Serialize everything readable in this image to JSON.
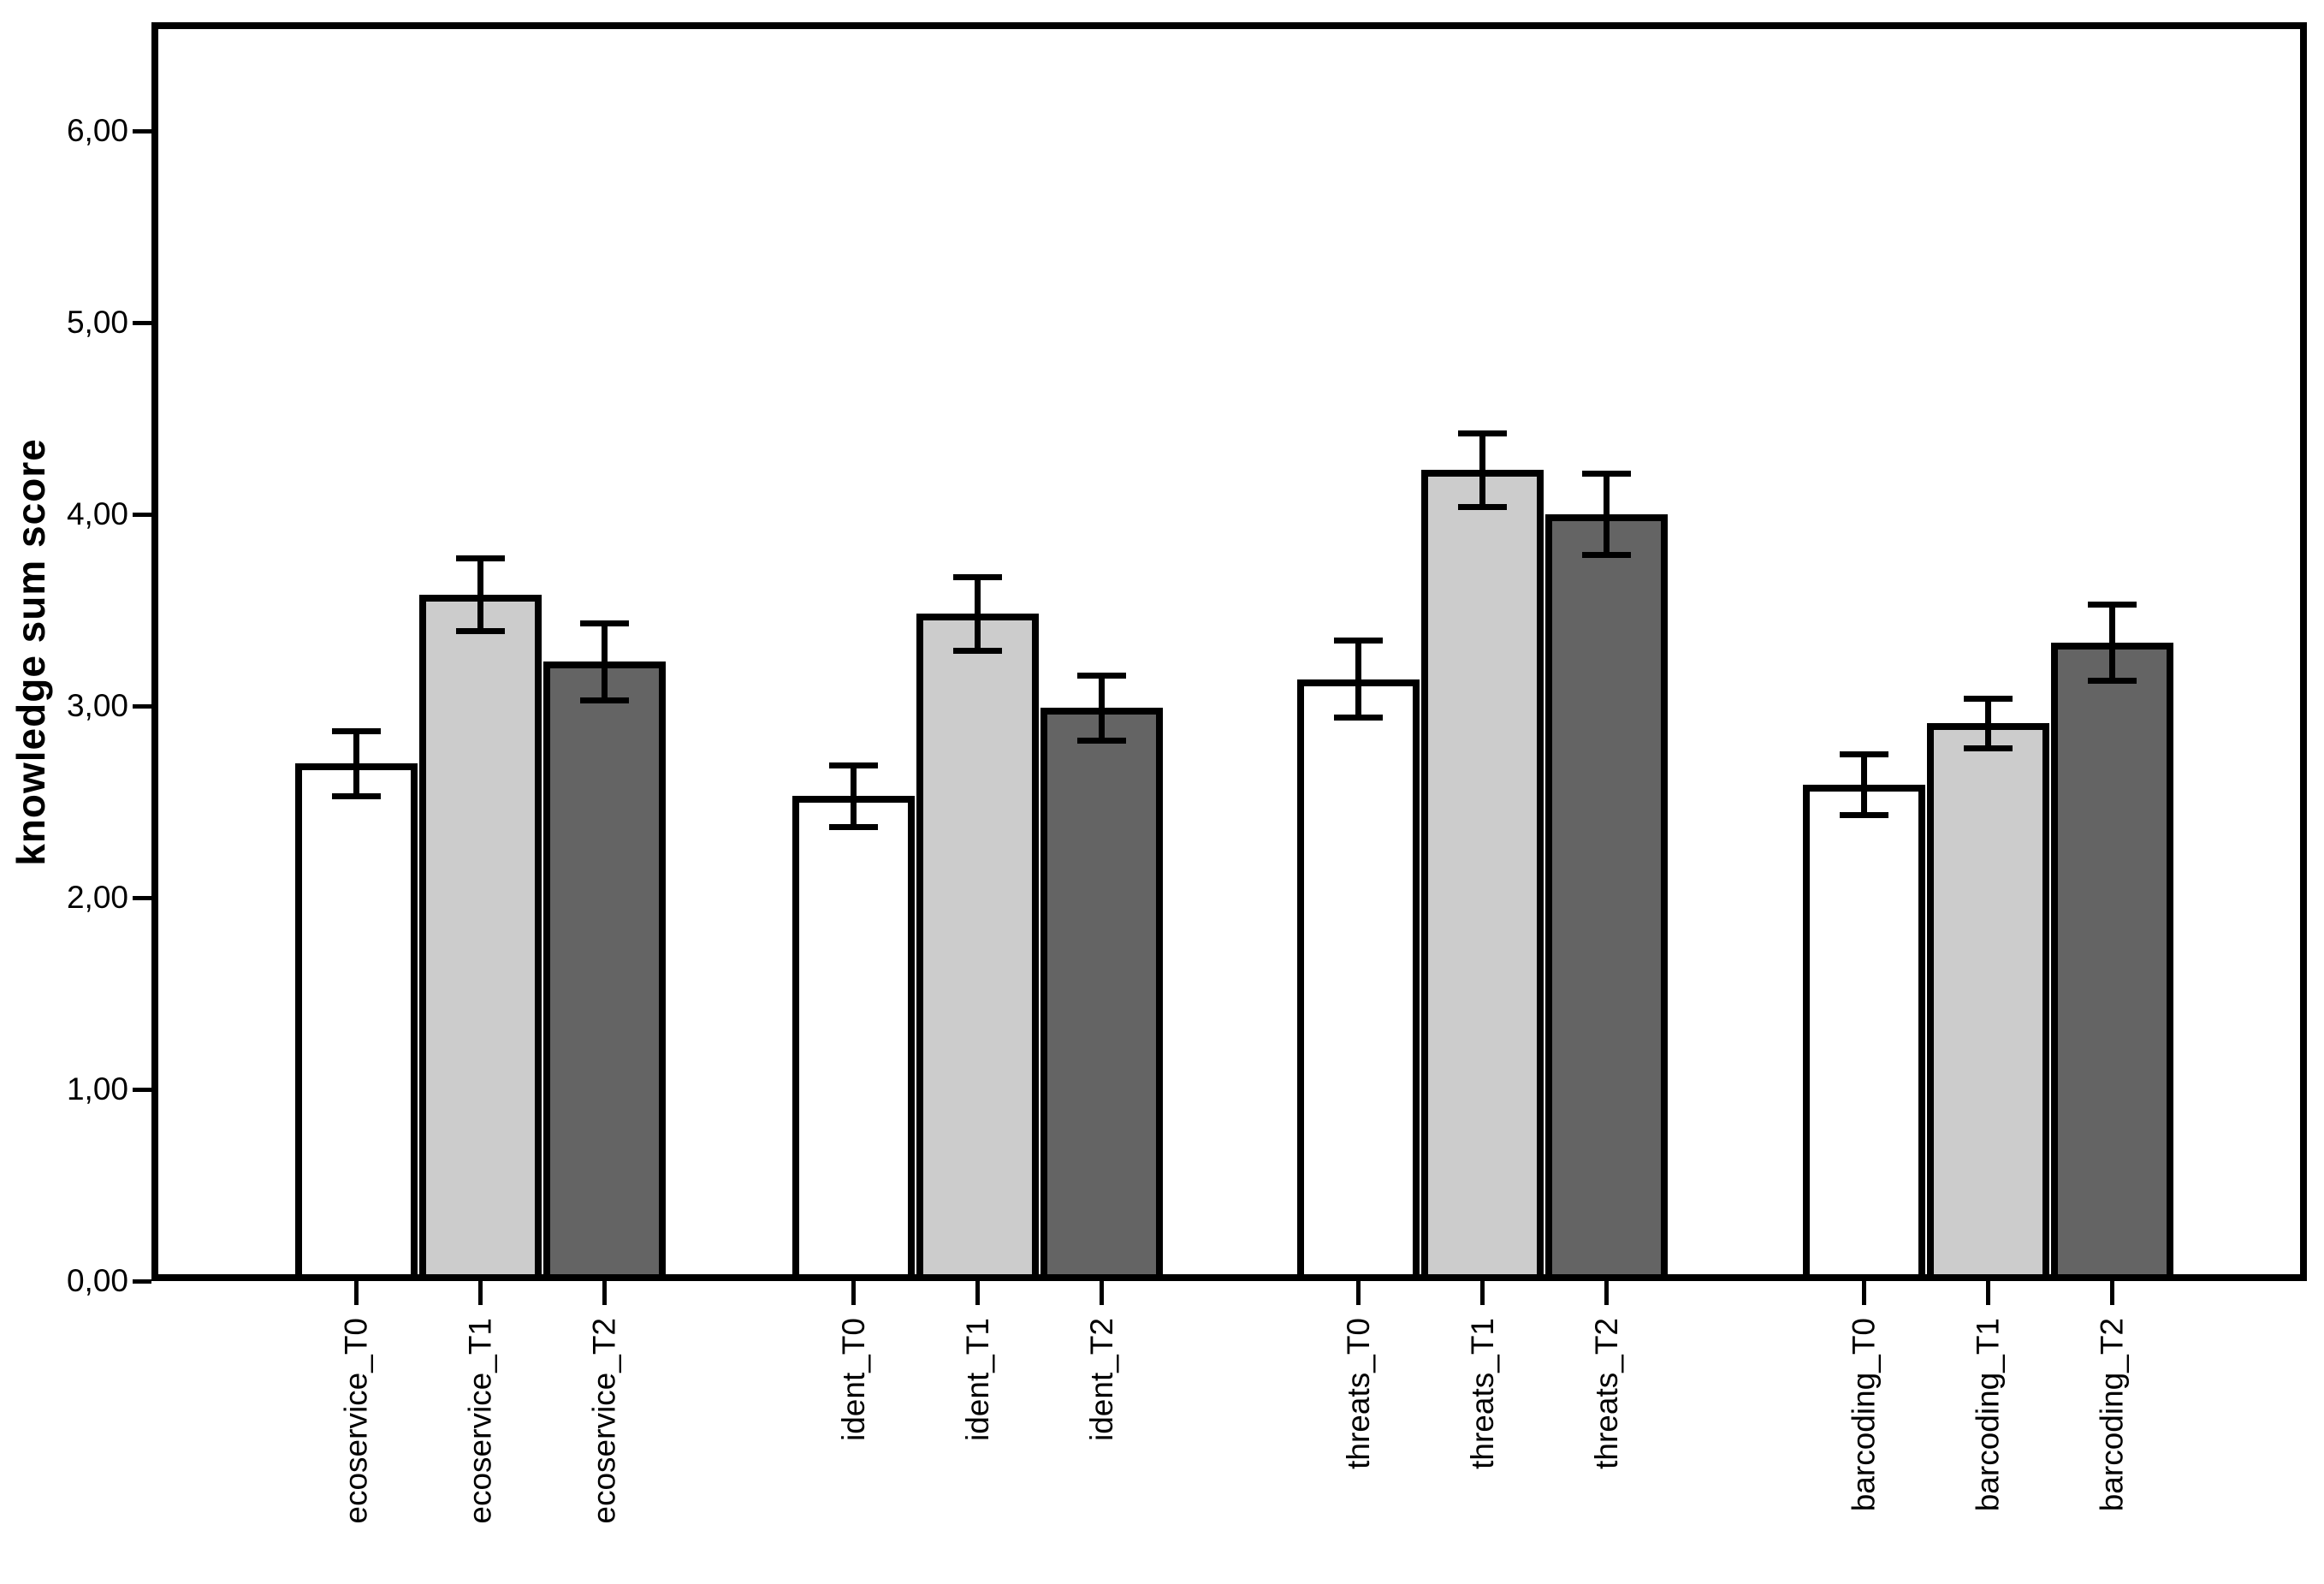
{
  "figure": {
    "background": "#ffffff"
  },
  "chart_data": {
    "type": "bar",
    "title": "",
    "ylabel": "knowledge sum score",
    "xlabel": "",
    "ylim": [
      0,
      6.57
    ],
    "grid": false,
    "legend": false,
    "decimal_separator": ",",
    "y_ticks": [
      {
        "value": 0,
        "label": "0,00"
      },
      {
        "value": 1,
        "label": "1,00"
      },
      {
        "value": 2,
        "label": "2,00"
      },
      {
        "value": 3,
        "label": "3,00"
      },
      {
        "value": 4,
        "label": "4,00"
      },
      {
        "value": 5,
        "label": "5,00"
      },
      {
        "value": 6,
        "label": "6,00"
      }
    ],
    "bar_fills": {
      "white": "#ffffff",
      "light_gray": "#cccccc",
      "dark_gray": "#646464"
    },
    "error_color": "#000000",
    "groups": [
      {
        "name": "ecoservice",
        "bars": [
          {
            "tick_label": "ecoservice_T0",
            "value": 2.7,
            "error": 0.17,
            "fill": "white"
          },
          {
            "tick_label": "ecoservice_T1",
            "value": 3.58,
            "error": 0.19,
            "fill": "light_gray"
          },
          {
            "tick_label": "ecoservice_T2",
            "value": 3.23,
            "error": 0.2,
            "fill": "dark_gray"
          }
        ]
      },
      {
        "name": "ident",
        "bars": [
          {
            "tick_label": "ident_T0",
            "value": 2.53,
            "error": 0.16,
            "fill": "white"
          },
          {
            "tick_label": "ident_T1",
            "value": 3.48,
            "error": 0.19,
            "fill": "light_gray"
          },
          {
            "tick_label": "ident_T2",
            "value": 2.99,
            "error": 0.17,
            "fill": "dark_gray"
          }
        ]
      },
      {
        "name": "threats",
        "bars": [
          {
            "tick_label": "threats_T0",
            "value": 3.14,
            "error": 0.2,
            "fill": "white"
          },
          {
            "tick_label": "threats_T1",
            "value": 4.23,
            "error": 0.19,
            "fill": "light_gray"
          },
          {
            "tick_label": "threats_T2",
            "value": 4.0,
            "error": 0.21,
            "fill": "dark_gray"
          }
        ]
      },
      {
        "name": "barcoding",
        "bars": [
          {
            "tick_label": "barcoding_T0",
            "value": 2.59,
            "error": 0.16,
            "fill": "white"
          },
          {
            "tick_label": "barcoding_T1",
            "value": 2.91,
            "error": 0.13,
            "fill": "light_gray"
          },
          {
            "tick_label": "barcoding_T2",
            "value": 3.33,
            "error": 0.2,
            "fill": "dark_gray"
          }
        ]
      }
    ]
  }
}
